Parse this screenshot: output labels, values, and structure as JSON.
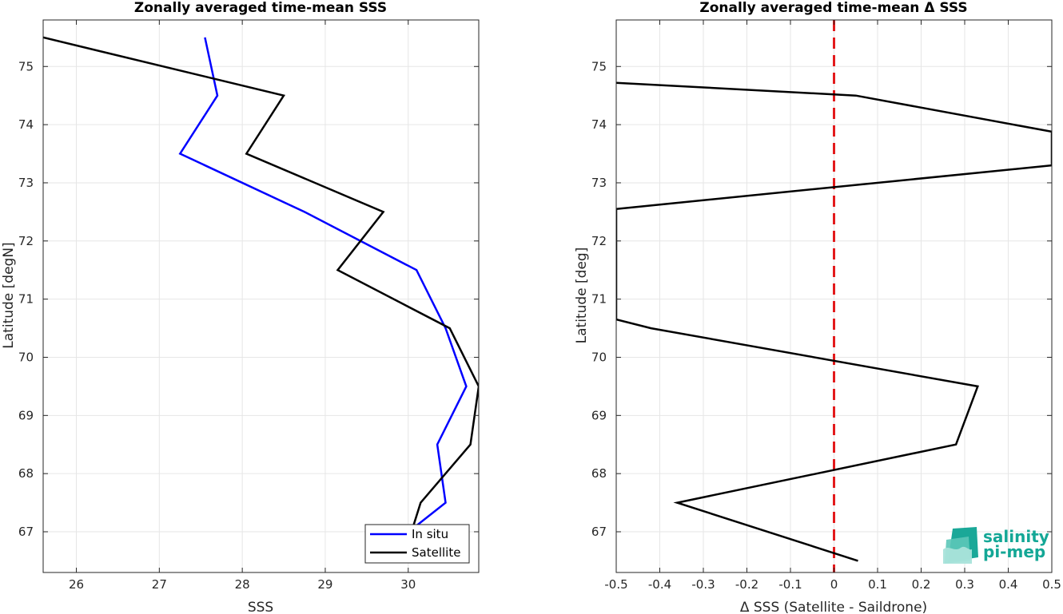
{
  "chart_data": [
    {
      "type": "line",
      "title": "Zonally averaged time-mean SSS",
      "xlabel": "SSS",
      "ylabel": "Latitude [degN]",
      "xlim": [
        25.6,
        30.85
      ],
      "ylim": [
        66.3,
        75.8
      ],
      "xticks": [
        26,
        27,
        28,
        29,
        30
      ],
      "yticks": [
        67,
        68,
        69,
        70,
        71,
        72,
        73,
        74,
        75
      ],
      "grid": true,
      "legend_position": "bottom-right",
      "series": [
        {
          "name": "In situ",
          "color": "#0000ff",
          "x": [
            27.55,
            27.7,
            27.25,
            28.75,
            30.1,
            30.45,
            30.7,
            30.35,
            30.45,
            30.05
          ],
          "y": [
            75.5,
            74.5,
            73.5,
            72.5,
            71.5,
            70.5,
            69.5,
            68.5,
            67.5,
            67.05
          ]
        },
        {
          "name": "Satellite",
          "color": "#000000",
          "x": [
            25.6,
            28.5,
            28.05,
            29.7,
            29.15,
            30.5,
            30.85,
            30.75,
            30.15,
            30.05
          ],
          "y": [
            75.5,
            74.5,
            73.5,
            72.5,
            71.5,
            70.5,
            69.5,
            68.5,
            67.5,
            67.05
          ]
        }
      ]
    },
    {
      "type": "line",
      "title": "Zonally averaged time-mean Δ SSS",
      "xlabel": "Δ SSS (Satellite - Saildrone)",
      "ylabel": "Latitude [deg]",
      "xlim": [
        -0.5,
        0.5
      ],
      "ylim": [
        66.3,
        75.8
      ],
      "xticks": [
        -0.5,
        -0.4,
        -0.3,
        -0.2,
        -0.1,
        0,
        0.1,
        0.2,
        0.3,
        0.4,
        0.5
      ],
      "xtick_labels": [
        "-0.5",
        "-0.4",
        "-0.3",
        "-0.2",
        "-0.1",
        "0",
        "0.1",
        "0.2",
        "0.3",
        "0.4",
        "0.5"
      ],
      "yticks": [
        67,
        68,
        69,
        70,
        71,
        72,
        73,
        74,
        75
      ],
      "grid": true,
      "reference_line": {
        "x": 0,
        "color": "#e31a1c",
        "style": "dashed"
      },
      "series": [
        {
          "color": "#000000",
          "x": [
            -0.5,
            0.05,
            0.5,
            0.5,
            -0.5,
            -0.5,
            -0.42,
            0.33,
            0.28,
            -0.36,
            0.055
          ],
          "y": [
            74.72,
            74.5,
            73.88,
            73.3,
            72.55,
            70.65,
            70.5,
            69.5,
            68.5,
            67.5,
            66.5
          ]
        }
      ]
    }
  ],
  "logo": {
    "line1": "salinity",
    "line2": "pi-mep"
  }
}
